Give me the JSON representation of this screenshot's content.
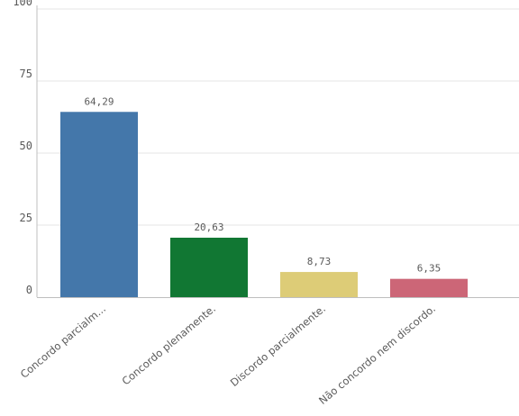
{
  "chart_data": {
    "type": "bar",
    "categories": [
      "Concordo parcialm...",
      "Concordo plenamente.",
      "Discordo parcialmente.",
      "Não concordo nem discordo."
    ],
    "values": [
      64.29,
      20.63,
      8.73,
      6.35
    ],
    "value_labels": [
      "64,29",
      "20,63",
      "8,73",
      "6,35"
    ],
    "colors": [
      "#4477aa",
      "#117733",
      "#ddcc77",
      "#cc6677"
    ],
    "title": "",
    "xlabel": "",
    "ylabel": "",
    "ylim": [
      0,
      100
    ],
    "yticks": [
      0,
      25,
      50,
      75,
      100
    ],
    "ytick_labels": [
      "0",
      "25",
      "50",
      "75",
      "100"
    ],
    "grid": true,
    "legend": "none"
  }
}
